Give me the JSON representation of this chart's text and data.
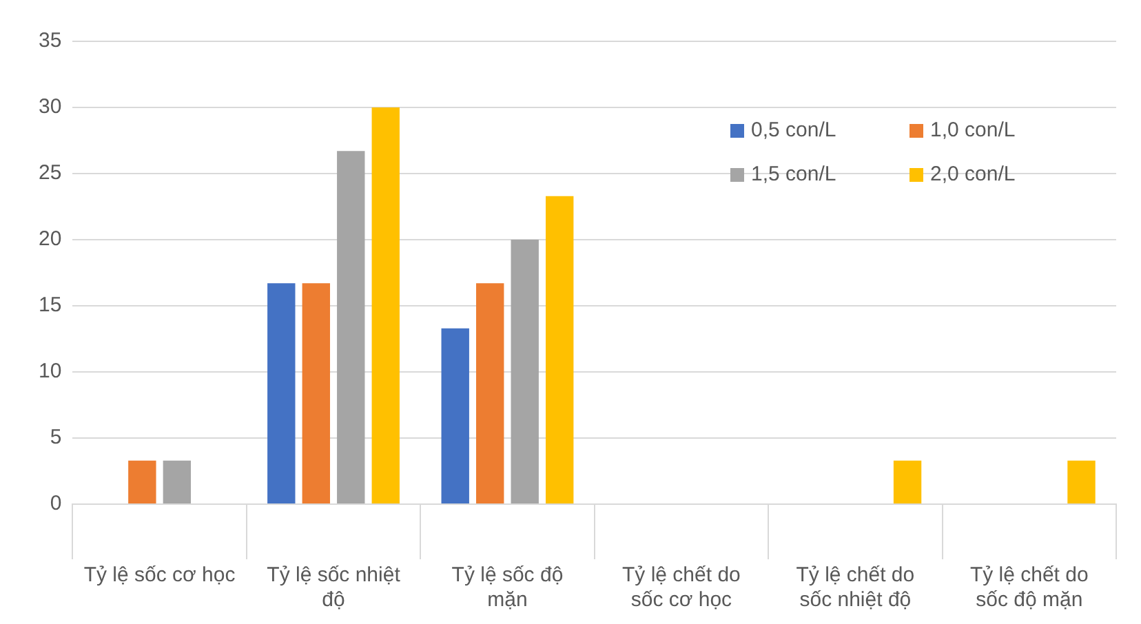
{
  "chart_data": {
    "type": "bar",
    "categories": [
      "Tỷ lệ sốc cơ học",
      "Tỷ lệ sốc nhiệt độ",
      "Tỷ lệ sốc độ mặn",
      "Tỷ lệ chết do sốc cơ học",
      "Tỷ lệ chết do sốc nhiệt độ",
      "Tỷ lệ chết do sốc độ mặn"
    ],
    "series": [
      {
        "name": "0,5 con/L",
        "color": "#4472c4",
        "values": [
          0,
          16.7,
          13.3,
          0,
          0,
          0
        ]
      },
      {
        "name": "1,0 con/L",
        "color": "#ed7d31",
        "values": [
          3.3,
          16.7,
          16.7,
          0,
          0,
          0
        ]
      },
      {
        "name": "1,5 con/L",
        "color": "#a5a5a5",
        "values": [
          3.3,
          26.7,
          20,
          0,
          0,
          0
        ]
      },
      {
        "name": "2,0 con/L",
        "color": "#ffc000",
        "values": [
          0,
          30,
          23.3,
          0,
          3.3,
          3.3
        ]
      }
    ],
    "ylim": [
      0,
      35
    ],
    "yticks": [
      0,
      5,
      10,
      15,
      20,
      25,
      30,
      35
    ],
    "grid": "y",
    "legend": "top right"
  }
}
